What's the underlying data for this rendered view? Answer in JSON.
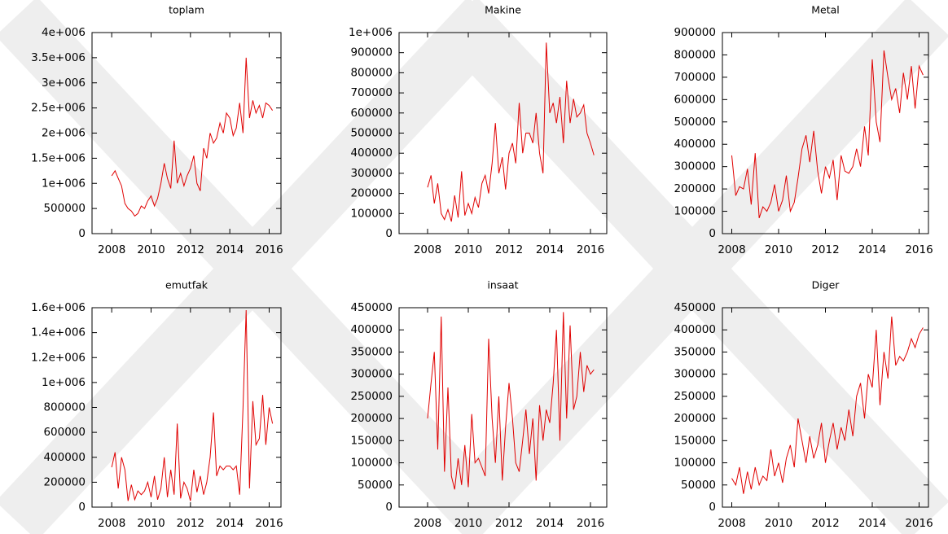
{
  "chart_data": [
    {
      "type": "line",
      "title": "toplam",
      "x": [
        2008,
        2008.17,
        2008.33,
        2008.5,
        2008.67,
        2008.83,
        2009,
        2009.17,
        2009.33,
        2009.5,
        2009.67,
        2009.83,
        2010,
        2010.17,
        2010.33,
        2010.5,
        2010.67,
        2010.83,
        2011,
        2011.17,
        2011.33,
        2011.5,
        2011.67,
        2011.83,
        2012,
        2012.17,
        2012.33,
        2012.5,
        2012.67,
        2012.83,
        2013,
        2013.17,
        2013.33,
        2013.5,
        2013.67,
        2013.83,
        2014,
        2014.17,
        2014.33,
        2014.5,
        2014.67,
        2014.83,
        2015,
        2015.17,
        2015.33,
        2015.5,
        2015.67,
        2015.83,
        2016,
        2016.17
      ],
      "values": [
        1150000,
        1250000,
        1100000,
        950000,
        600000,
        500000,
        450000,
        350000,
        400000,
        550000,
        500000,
        650000,
        750000,
        550000,
        700000,
        1000000,
        1400000,
        1100000,
        900000,
        1850000,
        1000000,
        1200000,
        950000,
        1150000,
        1300000,
        1550000,
        1000000,
        850000,
        1700000,
        1500000,
        2000000,
        1800000,
        1900000,
        2200000,
        2000000,
        2400000,
        2300000,
        1950000,
        2100000,
        2600000,
        2000000,
        3500000,
        2300000,
        2650000,
        2400000,
        2550000,
        2300000,
        2600000,
        2550000,
        2450000
      ],
      "color": "#e00000",
      "xlim": [
        2007,
        2016.6
      ],
      "xticks": [
        2008,
        2010,
        2012,
        2014,
        2016
      ],
      "ylim": [
        0,
        4000000
      ],
      "yticks": [
        0,
        500000,
        {
          "value": 1000000,
          "label": "1e+006"
        },
        {
          "value": 1500000,
          "label": "1.5e+006"
        },
        {
          "value": 2000000,
          "label": "2e+006"
        },
        {
          "value": 2500000,
          "label": "2.5e+006"
        },
        {
          "value": 3000000,
          "label": "3e+006"
        },
        {
          "value": 3500000,
          "label": "3.5e+006"
        },
        {
          "value": 4000000,
          "label": "4e+006"
        }
      ]
    },
    {
      "type": "line",
      "title": "Makine",
      "x": [
        2008,
        2008.17,
        2008.33,
        2008.5,
        2008.67,
        2008.83,
        2009,
        2009.17,
        2009.33,
        2009.5,
        2009.67,
        2009.83,
        2010,
        2010.17,
        2010.33,
        2010.5,
        2010.67,
        2010.83,
        2011,
        2011.17,
        2011.33,
        2011.5,
        2011.67,
        2011.83,
        2012,
        2012.17,
        2012.33,
        2012.5,
        2012.67,
        2012.83,
        2013,
        2013.17,
        2013.33,
        2013.5,
        2013.67,
        2013.83,
        2014,
        2014.17,
        2014.33,
        2014.5,
        2014.67,
        2014.83,
        2015,
        2015.17,
        2015.33,
        2015.5,
        2015.67,
        2015.83,
        2016,
        2016.17
      ],
      "values": [
        230000,
        290000,
        150000,
        250000,
        100000,
        70000,
        120000,
        60000,
        190000,
        80000,
        310000,
        90000,
        150000,
        100000,
        180000,
        130000,
        250000,
        290000,
        200000,
        350000,
        550000,
        300000,
        380000,
        220000,
        400000,
        450000,
        350000,
        650000,
        400000,
        500000,
        500000,
        450000,
        600000,
        400000,
        300000,
        950000,
        600000,
        650000,
        550000,
        680000,
        450000,
        760000,
        550000,
        670000,
        580000,
        600000,
        640000,
        500000,
        450000,
        390000
      ],
      "color": "#e00000",
      "xlim": [
        2006.6,
        2016.8
      ],
      "xticks": [
        2008,
        2010,
        2012,
        2014,
        2016
      ],
      "ylim": [
        0,
        1000000
      ],
      "yticks": [
        0,
        100000,
        200000,
        300000,
        400000,
        500000,
        600000,
        700000,
        800000,
        900000,
        {
          "value": 1000000,
          "label": "1e+006"
        }
      ]
    },
    {
      "type": "line",
      "title": "Metal",
      "x": [
        2008,
        2008.17,
        2008.33,
        2008.5,
        2008.67,
        2008.83,
        2009,
        2009.17,
        2009.33,
        2009.5,
        2009.67,
        2009.83,
        2010,
        2010.17,
        2010.33,
        2010.5,
        2010.67,
        2010.83,
        2011,
        2011.17,
        2011.33,
        2011.5,
        2011.67,
        2011.83,
        2012,
        2012.17,
        2012.33,
        2012.5,
        2012.67,
        2012.83,
        2013,
        2013.17,
        2013.33,
        2013.5,
        2013.67,
        2013.83,
        2014,
        2014.17,
        2014.33,
        2014.5,
        2014.67,
        2014.83,
        2015,
        2015.17,
        2015.33,
        2015.5,
        2015.67,
        2015.83,
        2016,
        2016.17
      ],
      "values": [
        350000,
        170000,
        210000,
        200000,
        290000,
        130000,
        360000,
        70000,
        120000,
        100000,
        140000,
        220000,
        100000,
        150000,
        260000,
        100000,
        140000,
        250000,
        380000,
        440000,
        320000,
        460000,
        280000,
        180000,
        300000,
        250000,
        330000,
        150000,
        350000,
        280000,
        270000,
        300000,
        380000,
        300000,
        480000,
        350000,
        780000,
        500000,
        410000,
        820000,
        700000,
        600000,
        650000,
        540000,
        720000,
        600000,
        750000,
        560000,
        750000,
        710000
      ],
      "color": "#e00000",
      "xlim": [
        2007.6,
        2016.4
      ],
      "xticks": [
        2008,
        2010,
        2012,
        2014,
        2016
      ],
      "ylim": [
        0,
        900000
      ],
      "yticks": [
        0,
        100000,
        200000,
        300000,
        400000,
        500000,
        600000,
        700000,
        800000,
        900000
      ]
    },
    {
      "type": "line",
      "title": "emutfak",
      "x": [
        2008,
        2008.17,
        2008.33,
        2008.5,
        2008.67,
        2008.83,
        2009,
        2009.17,
        2009.33,
        2009.5,
        2009.67,
        2009.83,
        2010,
        2010.17,
        2010.33,
        2010.5,
        2010.67,
        2010.83,
        2011,
        2011.17,
        2011.33,
        2011.5,
        2011.67,
        2011.83,
        2012,
        2012.17,
        2012.33,
        2012.5,
        2012.67,
        2012.83,
        2013,
        2013.17,
        2013.33,
        2013.5,
        2013.67,
        2013.83,
        2014,
        2014.17,
        2014.33,
        2014.5,
        2014.67,
        2014.83,
        2015,
        2015.17,
        2015.33,
        2015.5,
        2015.67,
        2015.83,
        2016,
        2016.17
      ],
      "values": [
        320000,
        440000,
        150000,
        400000,
        300000,
        50000,
        180000,
        60000,
        130000,
        100000,
        130000,
        200000,
        80000,
        250000,
        60000,
        150000,
        400000,
        80000,
        300000,
        100000,
        670000,
        70000,
        200000,
        150000,
        50000,
        300000,
        120000,
        250000,
        100000,
        200000,
        400000,
        760000,
        250000,
        330000,
        300000,
        330000,
        330000,
        300000,
        330000,
        100000,
        790000,
        1580000,
        150000,
        850000,
        500000,
        550000,
        900000,
        500000,
        800000,
        670000
      ],
      "color": "#e00000",
      "xlim": [
        2007,
        2016.6
      ],
      "xticks": [
        2008,
        2010,
        2012,
        2014,
        2016
      ],
      "ylim": [
        0,
        1600000
      ],
      "yticks": [
        0,
        200000,
        400000,
        600000,
        800000,
        {
          "value": 1000000,
          "label": "1e+006"
        },
        {
          "value": 1200000,
          "label": "1.2e+006"
        },
        {
          "value": 1400000,
          "label": "1.4e+006"
        },
        {
          "value": 1600000,
          "label": "1.6e+006"
        }
      ]
    },
    {
      "type": "line",
      "title": "insaat",
      "x": [
        2008,
        2008.17,
        2008.33,
        2008.5,
        2008.67,
        2008.83,
        2009,
        2009.17,
        2009.33,
        2009.5,
        2009.67,
        2009.83,
        2010,
        2010.17,
        2010.33,
        2010.5,
        2010.67,
        2010.83,
        2011,
        2011.17,
        2011.33,
        2011.5,
        2011.67,
        2011.83,
        2012,
        2012.17,
        2012.33,
        2012.5,
        2012.67,
        2012.83,
        2013,
        2013.17,
        2013.33,
        2013.5,
        2013.67,
        2013.83,
        2014,
        2014.17,
        2014.33,
        2014.5,
        2014.67,
        2014.83,
        2015,
        2015.17,
        2015.33,
        2015.5,
        2015.67,
        2015.83,
        2016,
        2016.17
      ],
      "values": [
        200000,
        280000,
        350000,
        130000,
        430000,
        80000,
        270000,
        70000,
        40000,
        110000,
        50000,
        140000,
        45000,
        210000,
        100000,
        110000,
        90000,
        70000,
        380000,
        200000,
        100000,
        250000,
        60000,
        180000,
        280000,
        200000,
        100000,
        80000,
        150000,
        220000,
        120000,
        200000,
        60000,
        230000,
        150000,
        220000,
        190000,
        280000,
        400000,
        150000,
        440000,
        200000,
        410000,
        220000,
        250000,
        350000,
        260000,
        320000,
        300000,
        310000
      ],
      "color": "#e00000",
      "xlim": [
        2006.6,
        2016.8
      ],
      "xticks": [
        2008,
        2010,
        2012,
        2014,
        2016
      ],
      "ylim": [
        0,
        450000
      ],
      "yticks": [
        0,
        50000,
        100000,
        150000,
        200000,
        250000,
        300000,
        350000,
        400000,
        450000
      ]
    },
    {
      "type": "line",
      "title": "Diger",
      "x": [
        2008,
        2008.17,
        2008.33,
        2008.5,
        2008.67,
        2008.83,
        2009,
        2009.17,
        2009.33,
        2009.5,
        2009.67,
        2009.83,
        2010,
        2010.17,
        2010.33,
        2010.5,
        2010.67,
        2010.83,
        2011,
        2011.17,
        2011.33,
        2011.5,
        2011.67,
        2011.83,
        2012,
        2012.17,
        2012.33,
        2012.5,
        2012.67,
        2012.83,
        2013,
        2013.17,
        2013.33,
        2013.5,
        2013.67,
        2013.83,
        2014,
        2014.17,
        2014.33,
        2014.5,
        2014.67,
        2014.83,
        2015,
        2015.17,
        2015.33,
        2015.5,
        2015.67,
        2015.83,
        2016,
        2016.17
      ],
      "values": [
        65000,
        50000,
        90000,
        30000,
        80000,
        40000,
        90000,
        50000,
        70000,
        60000,
        130000,
        70000,
        100000,
        55000,
        110000,
        140000,
        90000,
        200000,
        150000,
        100000,
        160000,
        110000,
        140000,
        190000,
        100000,
        150000,
        190000,
        130000,
        180000,
        150000,
        220000,
        160000,
        250000,
        280000,
        200000,
        300000,
        270000,
        400000,
        230000,
        350000,
        290000,
        430000,
        320000,
        340000,
        330000,
        350000,
        380000,
        360000,
        390000,
        405000
      ],
      "color": "#e00000",
      "xlim": [
        2007.6,
        2016.4
      ],
      "xticks": [
        2008,
        2010,
        2012,
        2014,
        2016
      ],
      "ylim": [
        0,
        450000
      ],
      "yticks": [
        0,
        50000,
        100000,
        150000,
        200000,
        250000,
        300000,
        350000,
        400000,
        450000
      ]
    }
  ]
}
